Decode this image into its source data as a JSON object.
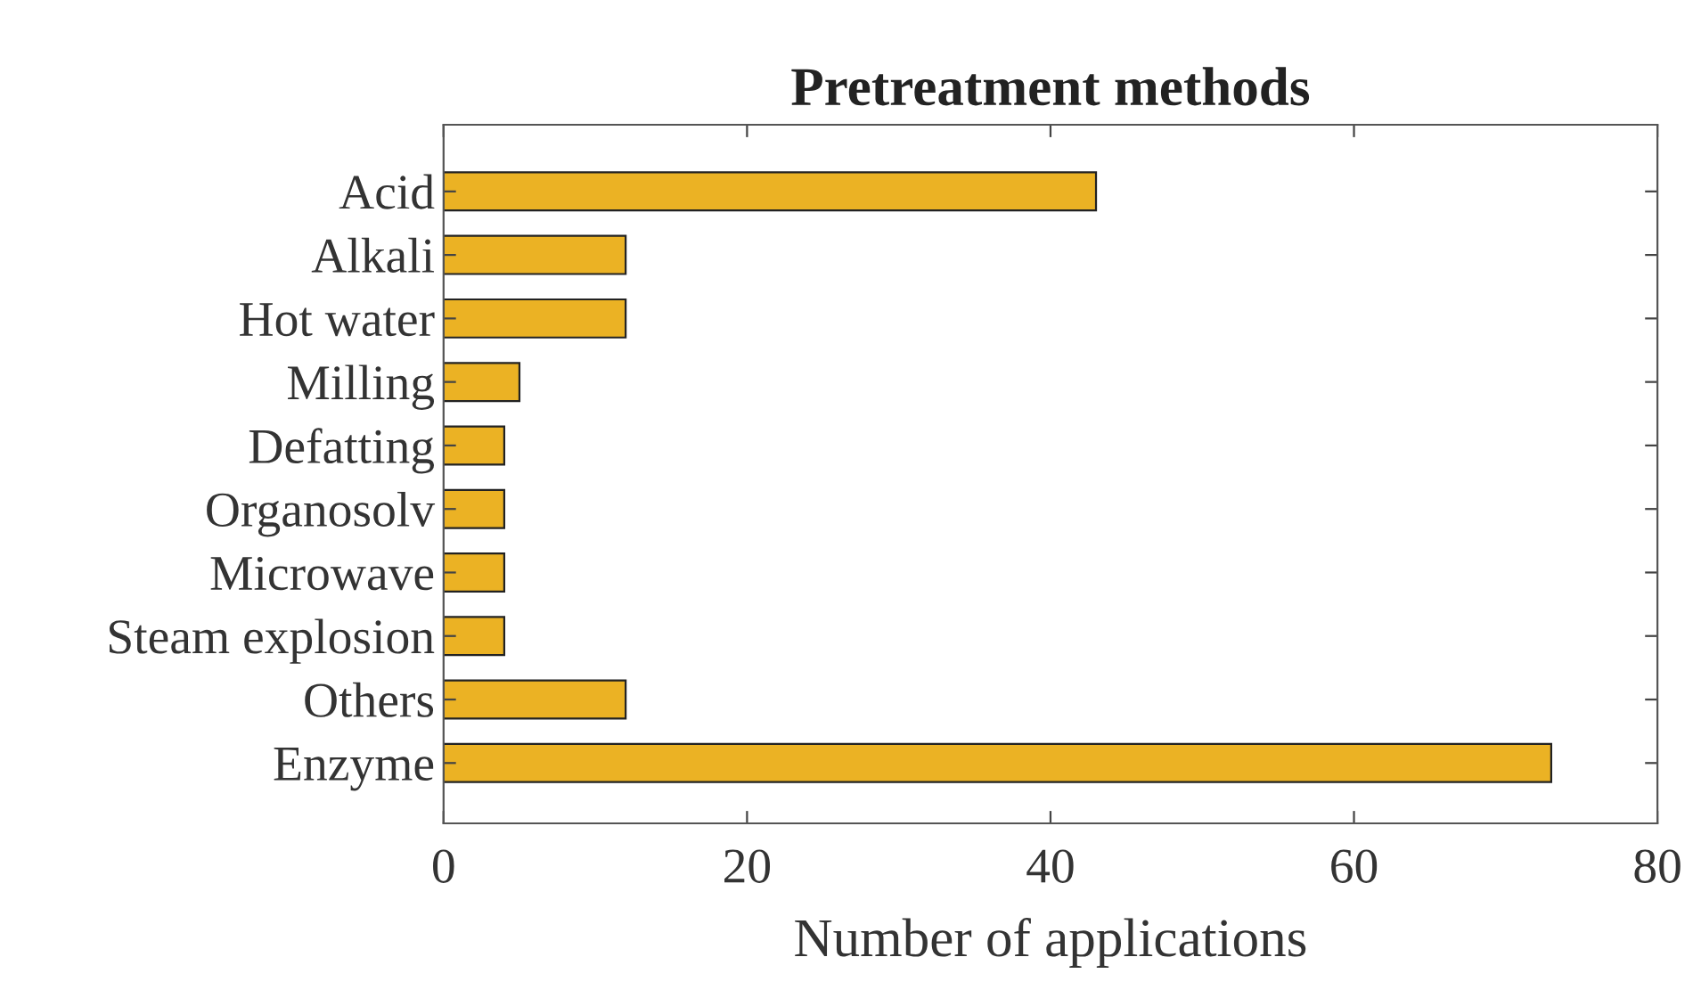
{
  "chart_data": {
    "type": "bar",
    "orientation": "horizontal",
    "title": "Pretreatment methods",
    "xlabel": "Number of applications",
    "categories": [
      "Acid",
      "Alkali",
      "Hot water",
      "Milling",
      "Defatting",
      "Organosolv",
      "Microwave",
      "Steam explosion",
      "Others",
      "Enzyme"
    ],
    "values": [
      43,
      12,
      12,
      5,
      4,
      4,
      4,
      4,
      12,
      73
    ],
    "color": "#ebb224",
    "xlim": [
      0,
      80
    ],
    "xticks": [
      0,
      20,
      40,
      60,
      80
    ],
    "grid": false,
    "legend": false
  }
}
